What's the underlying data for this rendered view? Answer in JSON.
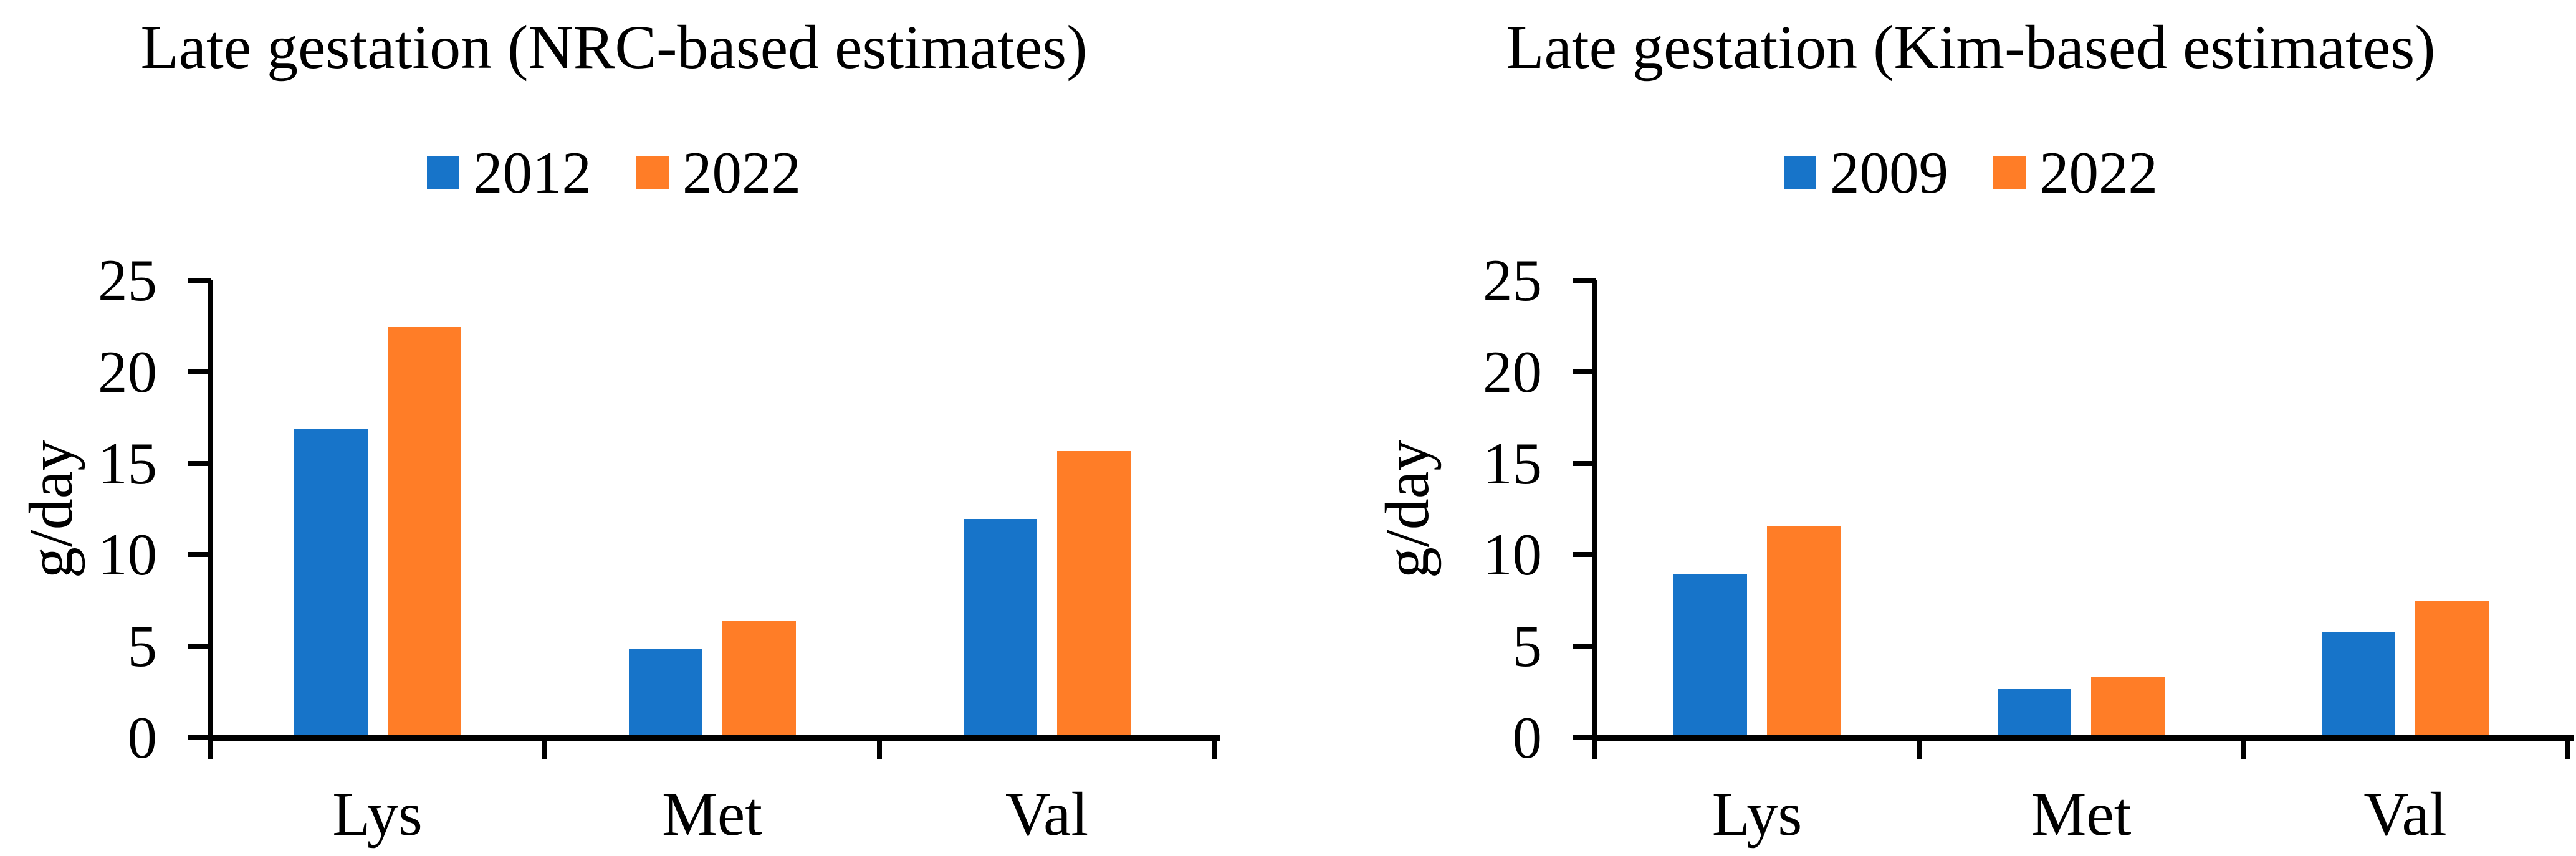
{
  "chart_data": [
    {
      "type": "bar",
      "title": "Late gestation (NRC-based estimates)",
      "ylabel": "g/day",
      "xlabel": "",
      "ylim": [
        0,
        25
      ],
      "y_ticks": [
        "0",
        "5",
        "10",
        "15",
        "20",
        "25"
      ],
      "grid": false,
      "legend_position": "top-center",
      "categories": [
        "Lys",
        "Met",
        "Val"
      ],
      "series": [
        {
          "name": "2012",
          "color": "#1774C9",
          "values": [
            16.7,
            4.7,
            11.8
          ]
        },
        {
          "name": "2022",
          "color": "#FF7D27",
          "values": [
            22.3,
            6.2,
            15.5
          ]
        }
      ]
    },
    {
      "type": "bar",
      "title": "Late gestation (Kim-based estimates)",
      "ylabel": "g/day",
      "xlabel": "",
      "ylim": [
        0,
        25
      ],
      "y_ticks": [
        "0",
        "5",
        "10",
        "15",
        "20",
        "25"
      ],
      "grid": false,
      "legend_position": "top-center",
      "categories": [
        "Lys",
        "Met",
        "Val"
      ],
      "series": [
        {
          "name": "2009",
          "color": "#1774C9",
          "values": [
            8.8,
            2.5,
            5.6
          ]
        },
        {
          "name": "2022",
          "color": "#FF7D27",
          "values": [
            11.4,
            3.2,
            7.3
          ]
        }
      ]
    }
  ],
  "colors": {
    "series1_blue": "#1774C9",
    "series2_orange": "#FF7D27",
    "axis_black": "#000000",
    "background": "#FFFFFF"
  }
}
